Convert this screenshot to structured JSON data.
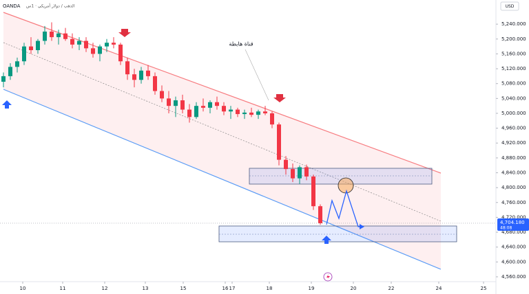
{
  "chart_data": {
    "type": "candlestick",
    "source": "OANDA",
    "symbol": "الذهب / دولار أمريكي · 1س",
    "currency": "USD",
    "annotation": "قناة هابطة",
    "up_color": "#089981",
    "down_color": "#f23645",
    "x": [
      0,
      1,
      2,
      3,
      4,
      5,
      6,
      7,
      8,
      9,
      10,
      11,
      12,
      13,
      14,
      15,
      16,
      17,
      18,
      19,
      20,
      21,
      22,
      23,
      24,
      25,
      26,
      27,
      28,
      29,
      30,
      31,
      32,
      33,
      34,
      35,
      36,
      37,
      38,
      39,
      40,
      41,
      42,
      43,
      44,
      45,
      46
    ],
    "open": [
      5085,
      5100,
      5125,
      5140,
      5180,
      5170,
      5195,
      5220,
      5205,
      5215,
      5200,
      5185,
      5195,
      5175,
      5160,
      5180,
      5190,
      5185,
      5140,
      5105,
      5090,
      5115,
      5100,
      5060,
      5040,
      5020,
      5035,
      5010,
      4990,
      5020,
      5015,
      5030,
      5020,
      5005,
      5010,
      4998,
      5002,
      4996,
      5005,
      5000,
      4970,
      4875,
      4850,
      4825,
      4855,
      4830,
      4750
    ],
    "high": [
      5110,
      5135,
      5150,
      5190,
      5205,
      5200,
      5235,
      5245,
      5225,
      5230,
      5215,
      5205,
      5205,
      5190,
      5185,
      5200,
      5205,
      5190,
      5150,
      5120,
      5125,
      5130,
      5110,
      5075,
      5060,
      5045,
      5050,
      5025,
      5030,
      5040,
      5035,
      5045,
      5030,
      5020,
      5015,
      5010,
      5015,
      5010,
      5020,
      5005,
      4975,
      4885,
      4865,
      4860,
      4862,
      4835,
      4755
    ],
    "low": [
      5070,
      5090,
      5110,
      5130,
      5160,
      5160,
      5185,
      5195,
      5185,
      5195,
      5175,
      5170,
      5165,
      5150,
      5140,
      5165,
      5175,
      5130,
      5090,
      5070,
      5080,
      5090,
      5050,
      5030,
      5000,
      4990,
      5000,
      4975,
      4985,
      5005,
      5000,
      5010,
      4995,
      4985,
      4990,
      4985,
      4990,
      4985,
      4995,
      4960,
      4860,
      4835,
      4815,
      4810,
      4820,
      4740,
      4700
    ],
    "close": [
      5100,
      5125,
      5140,
      5180,
      5170,
      5195,
      5220,
      5205,
      5215,
      5200,
      5185,
      5195,
      5175,
      5160,
      5180,
      5190,
      5185,
      5140,
      5105,
      5090,
      5115,
      5100,
      5060,
      5040,
      5020,
      5035,
      5010,
      4990,
      5020,
      5015,
      5030,
      5020,
      5005,
      5010,
      4998,
      5002,
      4996,
      5005,
      5000,
      4970,
      4875,
      4850,
      4825,
      4855,
      4830,
      4750,
      4704.18
    ],
    "current_price": {
      "value": 4704.18,
      "label": "4,704.180"
    },
    "countdown": "48:08",
    "xlim": [
      -0.5,
      71.5
    ],
    "xticks": [
      {
        "value": 2.8,
        "label": "10"
      },
      {
        "value": 8.6,
        "label": "11"
      },
      {
        "value": 14.7,
        "label": "12"
      },
      {
        "value": 20.6,
        "label": "13"
      },
      {
        "value": 26.1,
        "label": "15"
      },
      {
        "value": 32.2,
        "label": "16"
      },
      {
        "value": 33.2,
        "label": "17"
      },
      {
        "value": 38.6,
        "label": "18"
      },
      {
        "value": 44.7,
        "label": "19"
      },
      {
        "value": 50.8,
        "label": "20"
      },
      {
        "value": 56.3,
        "label": "22"
      },
      {
        "value": 63.2,
        "label": "24"
      },
      {
        "value": 69.7,
        "label": "25"
      }
    ],
    "ylim": [
      4547,
      5305
    ],
    "yticks": [
      {
        "value": 4560,
        "label": "4,560.000"
      },
      {
        "value": 4600,
        "label": "4,600.000"
      },
      {
        "value": 4640,
        "label": "4,640.000"
      },
      {
        "value": 4680,
        "label": "4,680.000"
      },
      {
        "value": 4720,
        "label": "4,720.000"
      },
      {
        "value": 4760,
        "label": "4,760.000"
      },
      {
        "value": 4800,
        "label": "4,800.000"
      },
      {
        "value": 4840,
        "label": "4,840.000"
      },
      {
        "value": 4880,
        "label": "4,880.000"
      },
      {
        "value": 4920,
        "label": "4,920.000"
      },
      {
        "value": 4960,
        "label": "4,960.000"
      },
      {
        "value": 5000,
        "label": "5,000.000"
      },
      {
        "value": 5040,
        "label": "5,040.000"
      },
      {
        "value": 5080,
        "label": "5,080.000"
      },
      {
        "value": 5120,
        "label": "5,120.000"
      },
      {
        "value": 5160,
        "label": "5,160.000"
      },
      {
        "value": 5200,
        "label": "5,200.000"
      },
      {
        "value": 5240,
        "label": "5,240.000"
      }
    ]
  }
}
